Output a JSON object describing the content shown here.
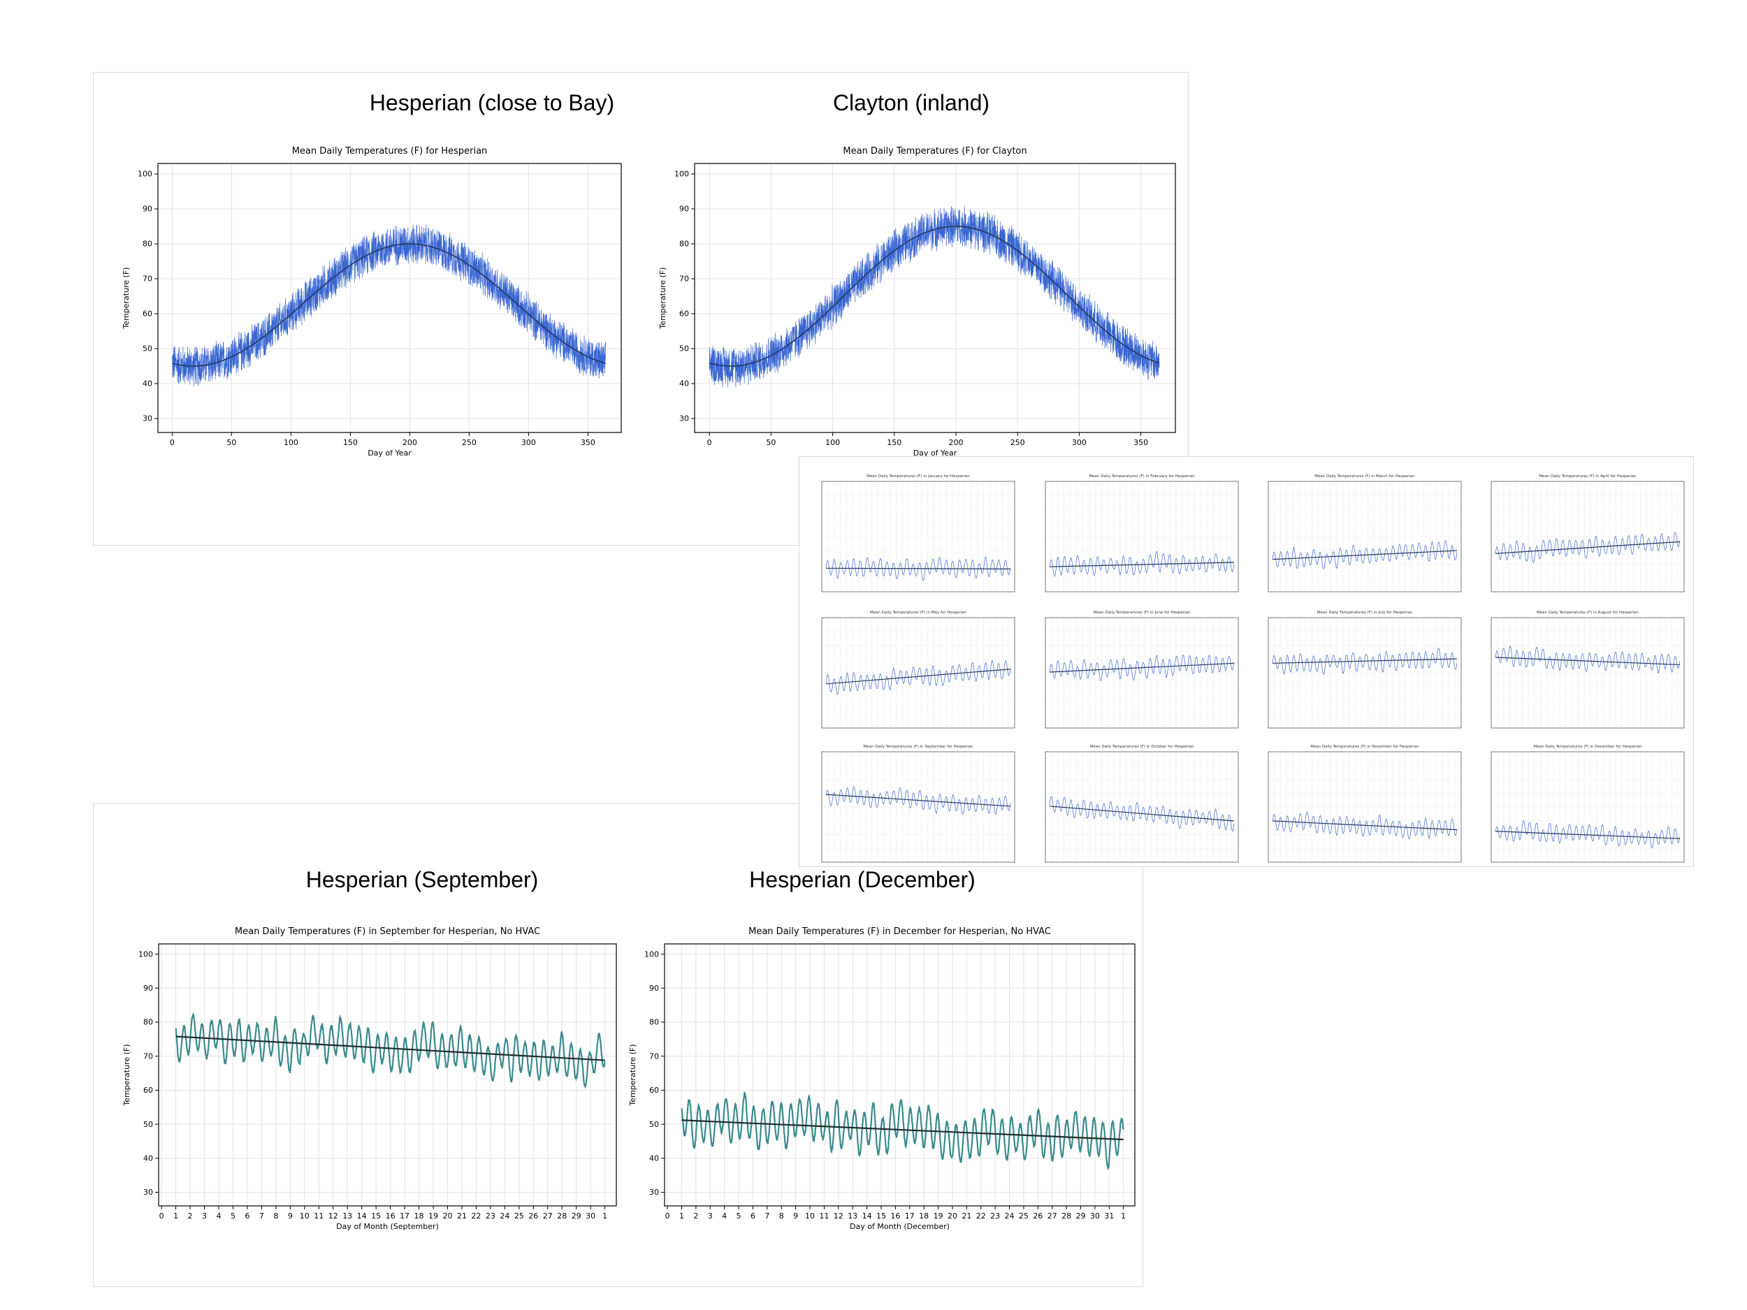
{
  "panels": {
    "annual": {
      "headings": [
        "Hesperian (close to Bay)",
        "Clayton (inland)"
      ]
    },
    "monthly": {
      "headings": [
        "Hesperian (September)",
        "Hesperian (December)"
      ]
    }
  },
  "colors": {
    "series_blue": "#3a66d1",
    "fit_dark": "#22375f",
    "series_teal": "#3a8a8c",
    "fit_black": "#1e2e2b"
  },
  "chart_data": [
    {
      "type": "line",
      "title": "Mean Daily Temperatures (F) for Hesperian",
      "xlabel": "Day of Year",
      "ylabel": "Temperature (F)",
      "xlim": [
        -12,
        378
      ],
      "ylim": [
        26,
        103
      ],
      "xticks": [
        0,
        50,
        100,
        150,
        200,
        250,
        300,
        350
      ],
      "yticks": [
        30,
        40,
        50,
        60,
        70,
        80,
        90,
        100
      ],
      "grid": true,
      "series": [
        {
          "kind": "noisy_daily",
          "x_range": [
            0,
            365
          ],
          "baseline": 62.5,
          "amplitude": 17.5,
          "peak_day": 200,
          "noise": 6.5
        },
        {
          "kind": "smooth_fit",
          "x_range": [
            0,
            365
          ],
          "baseline": 62.5,
          "amplitude": 17.5,
          "peak_day": 200
        }
      ]
    },
    {
      "type": "line",
      "title": "Mean Daily Temperatures (F) for Clayton",
      "xlabel": "Day of Year",
      "ylabel": "Temperature (F)",
      "xlim": [
        -12,
        378
      ],
      "ylim": [
        26,
        103
      ],
      "xticks": [
        0,
        50,
        100,
        150,
        200,
        250,
        300,
        350
      ],
      "yticks": [
        30,
        40,
        50,
        60,
        70,
        80,
        90,
        100
      ],
      "grid": true,
      "series": [
        {
          "kind": "noisy_daily",
          "x_range": [
            0,
            365
          ],
          "baseline": 65,
          "amplitude": 20,
          "peak_day": 200,
          "noise": 6.5
        },
        {
          "kind": "smooth_fit",
          "x_range": [
            0,
            365
          ],
          "baseline": 65,
          "amplitude": 20,
          "peak_day": 200
        }
      ]
    },
    {
      "type": "line",
      "title": "Mean Daily Temperatures (F) in September for Hesperian, No HVAC",
      "xlabel": "Day of Month (September)",
      "ylabel": "Temperature (F)",
      "xlim": [
        -0.2,
        31.8
      ],
      "ylim": [
        26,
        103
      ],
      "xticks": [
        0,
        1,
        2,
        3,
        4,
        5,
        6,
        7,
        8,
        9,
        10,
        11,
        12,
        13,
        14,
        15,
        16,
        17,
        18,
        19,
        20,
        21,
        22,
        23,
        24,
        25,
        26,
        27,
        28,
        29,
        30,
        31
      ],
      "xticklabels": [
        "0",
        "1",
        "2",
        "3",
        "4",
        "5",
        "6",
        "7",
        "8",
        "9",
        "10",
        "11",
        "12",
        "13",
        "14",
        "15",
        "16",
        "17",
        "18",
        "19",
        "20",
        "21",
        "22",
        "23",
        "24",
        "25",
        "26",
        "27",
        "28",
        "29",
        "30",
        "1"
      ],
      "yticks": [
        30,
        40,
        50,
        60,
        70,
        80,
        90,
        100
      ],
      "grid": true,
      "fit_line": {
        "start": [
          1,
          75.8
        ],
        "end": [
          31,
          68.8
        ]
      },
      "series": [
        {
          "kind": "diurnal",
          "x_range": [
            1,
            31
          ],
          "start": 75.8,
          "end": 68.8,
          "amplitude": 10,
          "variation": 4
        }
      ]
    },
    {
      "type": "line",
      "title": "Mean Daily Temperatures (F) in December for Hesperian, No HVAC",
      "xlabel": "Day of Month (December)",
      "ylabel": "Temperature (F)",
      "xlim": [
        -0.2,
        32.8
      ],
      "ylim": [
        26,
        103
      ],
      "xticks": [
        0,
        1,
        2,
        3,
        4,
        5,
        6,
        7,
        8,
        9,
        10,
        11,
        12,
        13,
        14,
        15,
        16,
        17,
        18,
        19,
        20,
        21,
        22,
        23,
        24,
        25,
        26,
        27,
        28,
        29,
        30,
        31,
        32
      ],
      "xticklabels": [
        "0",
        "1",
        "2",
        "3",
        "4",
        "5",
        "6",
        "7",
        "8",
        "9",
        "10",
        "11",
        "12",
        "13",
        "14",
        "15",
        "16",
        "17",
        "18",
        "19",
        "20",
        "21",
        "22",
        "23",
        "24",
        "25",
        "26",
        "27",
        "28",
        "29",
        "30",
        "31",
        "1"
      ],
      "yticks": [
        30,
        40,
        50,
        60,
        70,
        80,
        90,
        100
      ],
      "grid": true,
      "fit_line": {
        "start": [
          1,
          51.2
        ],
        "end": [
          32,
          45.5
        ]
      },
      "series": [
        {
          "kind": "diurnal",
          "x_range": [
            1,
            32
          ],
          "start": 51.2,
          "end": 45.5,
          "amplitude": 11,
          "variation": 4
        }
      ]
    },
    {
      "type": "line",
      "layout": "grid-3x4",
      "title": "",
      "months": [
        {
          "title": "Mean Daily Temperatures (F) in January for Hesperian",
          "fit": [
            46,
            45.5
          ]
        },
        {
          "title": "Mean Daily Temperatures (F) in February for Hesperian",
          "fit": [
            47,
            50
          ]
        },
        {
          "title": "Mean Daily Temperatures (F) in March for Hesperian",
          "fit": [
            52,
            58
          ]
        },
        {
          "title": "Mean Daily Temperatures (F) in April for Hesperian",
          "fit": [
            56,
            64
          ]
        },
        {
          "title": "Mean Daily Temperatures (F) in May for Hesperian",
          "fit": [
            60,
            70
          ]
        },
        {
          "title": "Mean Daily Temperatures (F) in June for Hesperian",
          "fit": [
            68,
            74
          ]
        },
        {
          "title": "Mean Daily Temperatures (F) in July for Hesperian",
          "fit": [
            74,
            77
          ]
        },
        {
          "title": "Mean Daily Temperatures (F) in August for Hesperian",
          "fit": [
            78,
            73
          ]
        },
        {
          "title": "Mean Daily Temperatures (F) in September for Hesperian",
          "fit": [
            76,
            68
          ]
        },
        {
          "title": "Mean Daily Temperatures (F) in October for Hesperian",
          "fit": [
            68,
            58
          ]
        },
        {
          "title": "Mean Daily Temperatures (F) in November for Hesperian",
          "fit": [
            58,
            52
          ]
        },
        {
          "title": "Mean Daily Temperatures (F) in December for Hesperian",
          "fit": [
            51,
            46
          ]
        }
      ]
    }
  ]
}
